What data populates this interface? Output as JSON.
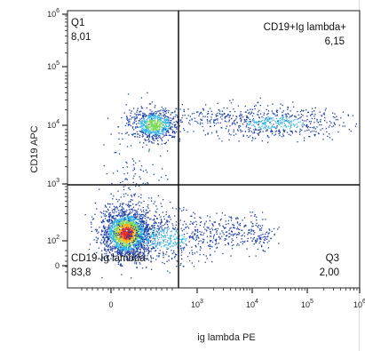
{
  "chart_data": {
    "type": "scatter",
    "title": "",
    "xlabel": "ig lambda PE",
    "ylabel": "CD19 APC",
    "scale": "biexponential (log with linear region near zero)",
    "xlim": [
      -100,
      1000000
    ],
    "ylim": [
      -100,
      1000000
    ],
    "gate": {
      "x": 700,
      "y": 1000
    },
    "x_ticks": [
      {
        "base": "0",
        "exp": "",
        "value": 0
      },
      {
        "base": "10",
        "exp": "3",
        "value": 1000
      },
      {
        "base": "10",
        "exp": "4",
        "value": 10000
      },
      {
        "base": "10",
        "exp": "5",
        "value": 100000
      },
      {
        "base": "10",
        "exp": "6",
        "value": 1000000
      }
    ],
    "y_ticks": [
      {
        "base": "0",
        "exp": "",
        "value": 0
      },
      {
        "base": "10",
        "exp": "2",
        "value": 100
      },
      {
        "base": "10",
        "exp": "3",
        "value": 1000
      },
      {
        "base": "10",
        "exp": "4",
        "value": 10000
      },
      {
        "base": "10",
        "exp": "5",
        "value": 100000
      },
      {
        "base": "10",
        "exp": "6",
        "value": 1000000
      }
    ],
    "quadrants": [
      {
        "name": "Q1",
        "percent": "8,01",
        "position": "top-left"
      },
      {
        "name": "CD19+Ig lambda+",
        "percent": "6,15",
        "position": "top-right"
      },
      {
        "name": "CD19-Ig lambda-",
        "percent": "83,8",
        "position": "bottom-left"
      },
      {
        "name": "Q3",
        "percent": "2,00",
        "position": "bottom-right"
      }
    ],
    "populations": [
      {
        "x_center": 30,
        "y_center": 10000,
        "density": "medium",
        "share": 8.01
      },
      {
        "x_center": 10000,
        "y_center": 10000,
        "density": "low",
        "share": 6.15
      },
      {
        "x_center": 30,
        "y_center": 150,
        "density": "very high",
        "share": 83.8
      },
      {
        "x_center": 3000,
        "y_center": 150,
        "density": "low",
        "share": 2.0
      }
    ],
    "grid": false,
    "colors": {
      "low": "#1f3fa8",
      "mid": "#31b3e6",
      "high": "#7ed957",
      "peak": "#e82a1b"
    }
  }
}
